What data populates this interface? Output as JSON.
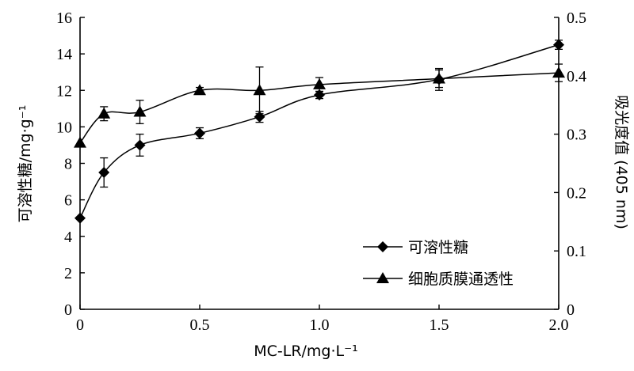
{
  "chart_data": {
    "type": "line",
    "xlabel": "MC-LR/mg·L⁻¹",
    "ylabel_left": "可溶性糖/mg·g⁻¹",
    "ylabel_right": "吸光度值 (405 nm)",
    "x_ticks": [
      "0",
      "0.5",
      "1.0",
      "1.5",
      "2.0"
    ],
    "y_left_ticks": [
      "0",
      "2",
      "4",
      "6",
      "8",
      "10",
      "12",
      "14",
      "16"
    ],
    "y_right_ticks": [
      "0",
      "0.1",
      "0.2",
      "0.3",
      "0.4",
      "0.5"
    ],
    "xlim": [
      0,
      2.0
    ],
    "ylim_left": [
      0,
      16
    ],
    "ylim_right": [
      0,
      0.5
    ],
    "grid": false,
    "legend_position": "bottom-right",
    "x": [
      0,
      0.1,
      0.25,
      0.5,
      0.75,
      1.0,
      1.5,
      2.0
    ],
    "series": [
      {
        "name": "可溶性糖",
        "axis": "left",
        "marker": "diamond",
        "values": [
          5.0,
          7.5,
          9.0,
          9.65,
          10.55,
          11.75,
          12.6,
          14.5
        ],
        "errors": [
          0.0,
          0.8,
          0.6,
          0.3,
          0.3,
          0.2,
          0.6,
          0.25
        ]
      },
      {
        "name": "细胞质膜通透性",
        "axis": "right",
        "marker": "triangle",
        "values": [
          0.285,
          0.335,
          0.338,
          0.375,
          0.375,
          0.385,
          0.395,
          0.405
        ],
        "errors": [
          0.0,
          0.012,
          0.02,
          0.005,
          0.04,
          0.012,
          0.015,
          0.015
        ]
      }
    ]
  }
}
